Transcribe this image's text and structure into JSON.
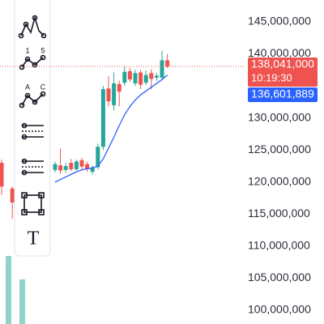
{
  "toolbar": {
    "labels": [
      "1",
      "5",
      "A",
      "C",
      "T"
    ]
  },
  "chart_data": {
    "type": "candlestick",
    "up_color": "#26a69a",
    "down_color": "#ef5350",
    "ma_color": "#2962ff",
    "ylim": [
      97850000,
      148410000
    ],
    "yticks": [
      {
        "value": 145000000,
        "label": "145,000,000"
      },
      {
        "value": 140000000,
        "label": "140,000,000"
      },
      {
        "value": 130000000,
        "label": "130,000,000"
      },
      {
        "value": 125000000,
        "label": "125,000,000"
      },
      {
        "value": 120000000,
        "label": "120,000,000"
      },
      {
        "value": 115000000,
        "label": "115,000,000"
      },
      {
        "value": 110000000,
        "label": "110,000,000"
      },
      {
        "value": 105000000,
        "label": "105,000,000"
      },
      {
        "value": 100000000,
        "label": "100,000,000"
      }
    ],
    "open": [
      123000000,
      null,
      119000000,
      null,
      null,
      null,
      null,
      null,
      null,
      null,
      121900000,
      122600000,
      121900000,
      123000000,
      122000000,
      123400000,
      122800000,
      121600000,
      122300000,
      125500000,
      134600000,
      132000000,
      135300000,
      135500000,
      137300000,
      135400000,
      137100000,
      135500000,
      137000000,
      136300000,
      136300000,
      139000000
    ],
    "high": [
      123500000,
      null,
      119300000,
      null,
      null,
      null,
      null,
      null,
      null,
      null,
      123200000,
      125200000,
      123000000,
      123600000,
      123500000,
      123800000,
      123200000,
      122600000,
      126000000,
      135000000,
      136500000,
      137100000,
      135800000,
      138000000,
      137800000,
      137500000,
      137500000,
      137400000,
      137600000,
      137000000,
      140500000,
      140000000
    ],
    "low": [
      118000000,
      null,
      114300000,
      null,
      null,
      null,
      null,
      null,
      null,
      null,
      121500000,
      121300000,
      121400000,
      121700000,
      121800000,
      122000000,
      121600000,
      121200000,
      122000000,
      125000000,
      131800000,
      131200000,
      131800000,
      135000000,
      135600000,
      135000000,
      134500000,
      135100000,
      134500000,
      135800000,
      136000000,
      137800000
    ],
    "close": [
      119300000,
      null,
      116800000,
      null,
      null,
      null,
      null,
      null,
      null,
      null,
      122800000,
      121800000,
      122500000,
      122000000,
      123200000,
      122400000,
      122000000,
      122300000,
      125500000,
      134500000,
      132600000,
      135400000,
      134100000,
      137200000,
      136000000,
      137000000,
      135200000,
      136700000,
      136100000,
      136600000,
      139000000,
      138000000
    ],
    "ma": [
      null,
      null,
      null,
      null,
      null,
      null,
      null,
      null,
      null,
      null,
      120000000,
      120400000,
      120800000,
      121200000,
      121600000,
      121900000,
      122100000,
      122200000,
      122500000,
      123600000,
      125300000,
      127000000,
      128800000,
      130500000,
      131800000,
      132800000,
      133600000,
      134200000,
      134800000,
      135400000,
      136000000,
      136700000
    ],
    "last_price": {
      "value": 138041000,
      "label": "138,041,000"
    },
    "countdown": "10:19:30",
    "ma_price": {
      "value": 136601889,
      "label": "136,601,889"
    }
  }
}
